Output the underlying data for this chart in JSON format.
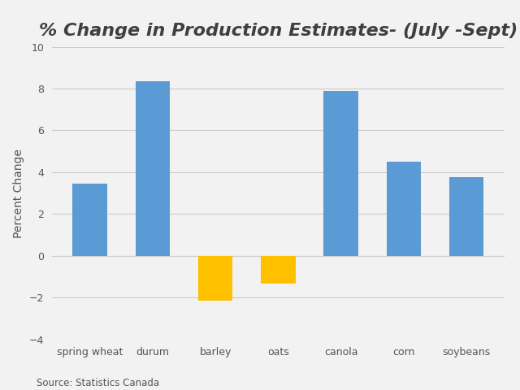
{
  "title": "% Change in Production Estimates- (July -Sept)",
  "categories": [
    "spring wheat",
    "durum",
    "barley",
    "oats",
    "canola",
    "corn",
    "soybeans"
  ],
  "values": [
    3.45,
    8.35,
    -2.15,
    -1.35,
    7.9,
    4.5,
    3.75
  ],
  "bar_colors": [
    "#5B9BD5",
    "#5B9BD5",
    "#FFC000",
    "#FFC000",
    "#5B9BD5",
    "#5B9BD5",
    "#5B9BD5"
  ],
  "ylabel": "Percent Change",
  "ylim": [
    -4,
    10
  ],
  "yticks": [
    -4,
    -2,
    0,
    2,
    4,
    6,
    8,
    10
  ],
  "background_color": "#F2F2F2",
  "plot_bg_color": "#F2F2F2",
  "grid_color": "#CCCCCC",
  "source_text": "Source: Statistics Canada",
  "title_fontsize": 16,
  "label_fontsize": 10,
  "tick_fontsize": 9,
  "source_fontsize": 8.5
}
